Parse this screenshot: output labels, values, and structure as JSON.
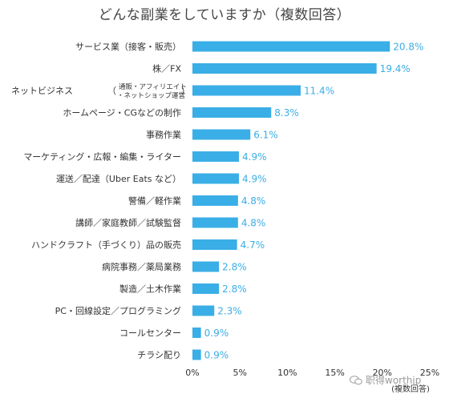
{
  "chart_data": {
    "type": "bar",
    "orientation": "horizontal",
    "title": "どんな副業をしていますか（複数回答）",
    "categories": [
      "サービス業（接客・販売）",
      "株／FX",
      "ネットビジネス（通販・アフィリエイト・ネットショップ運営）",
      "ホームページ・CGなどの制作",
      "事務作業",
      "マーケティング・広報・編集・ライター",
      "運送／配達（Uber Eats など）",
      "警備／軽作業",
      "講師／家庭教師／試験監督",
      "ハンドクラフト（手づくり）品の販売",
      "病院事務／薬局業務",
      "製造／土木作業",
      "PC・回線設定／プログラミング",
      "コールセンター",
      "チラシ配り"
    ],
    "values": [
      20.8,
      19.4,
      11.4,
      8.3,
      6.1,
      4.9,
      4.9,
      4.8,
      4.8,
      4.7,
      2.8,
      2.8,
      2.3,
      0.9,
      0.9
    ],
    "value_labels": [
      "20.8%",
      "19.4%",
      "11.4%",
      "8.3%",
      "6.1%",
      "4.9%",
      "4.9%",
      "4.8%",
      "4.8%",
      "4.7%",
      "2.8%",
      "2.8%",
      "2.3%",
      "0.9%",
      "0.9%"
    ],
    "xlim": [
      0,
      25
    ],
    "xticks": [
      "0%",
      "5%",
      "10%",
      "15%",
      "20%",
      "25%"
    ],
    "xunit": "(複数回答)",
    "grid": false,
    "bar_color": "#3aaee6",
    "label_color": "#3aaee6"
  },
  "watermark": "职得worthjp",
  "watermark_icon": "wechat-icon"
}
